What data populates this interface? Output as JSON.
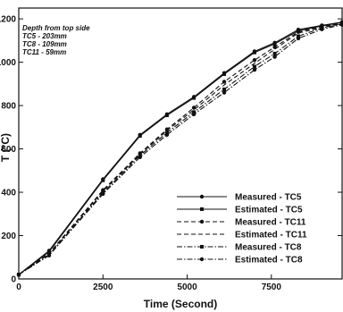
{
  "chart_data": {
    "type": "line",
    "xlabel": "Time (Second)",
    "ylabel": "T (°C)",
    "xlim": [
      0,
      9600
    ],
    "ylim": [
      0,
      1250
    ],
    "x_ticks": [
      0,
      2500,
      5000,
      7500
    ],
    "y_ticks": [
      0,
      200,
      400,
      600,
      800,
      1000,
      1200
    ],
    "grid": false,
    "annotation_lines": [
      "Depth from top side",
      "TC5 - 203mm",
      "TC8 - 109mm",
      "TC11 - 59mm"
    ],
    "legend_position": "bottom-right",
    "series": [
      {
        "name": "Measured - TC5",
        "dash": "solid",
        "marker": "circle",
        "x": [
          0,
          900,
          2500,
          3600,
          4400,
          5200,
          6100,
          7000,
          7600,
          8300,
          9000,
          9600
        ],
        "y": [
          20,
          130,
          460,
          665,
          760,
          840,
          950,
          1050,
          1090,
          1150,
          1170,
          1185
        ]
      },
      {
        "name": "Estimated - TC5",
        "dash": "solid",
        "marker": "square",
        "x": [
          0,
          900,
          2500,
          3600,
          4400,
          5200,
          6100,
          7000,
          7600,
          8300,
          9000,
          9600
        ],
        "y": [
          20,
          125,
          455,
          660,
          755,
          835,
          945,
          1045,
          1085,
          1145,
          1168,
          1183
        ]
      },
      {
        "name": "Measured - TC11",
        "dash": "dash",
        "marker": "circle",
        "x": [
          0,
          900,
          2500,
          3600,
          4400,
          5200,
          6100,
          7000,
          7600,
          8300,
          9000,
          9600
        ],
        "y": [
          20,
          118,
          410,
          580,
          690,
          790,
          910,
          1010,
          1070,
          1140,
          1165,
          1180
        ]
      },
      {
        "name": "Estimated - TC11",
        "dash": "dash",
        "marker": "none",
        "x": [
          0,
          900,
          2500,
          3600,
          4400,
          5200,
          6100,
          7000,
          7600,
          8300,
          9000,
          9600
        ],
        "y": [
          20,
          115,
          405,
          575,
          685,
          780,
          895,
          995,
          1060,
          1135,
          1160,
          1178
        ]
      },
      {
        "name": "Measured - TC8",
        "dash": "dashdot",
        "marker": "square",
        "x": [
          0,
          900,
          2500,
          3600,
          4400,
          5200,
          6100,
          7000,
          7600,
          8300,
          9000,
          9600
        ],
        "y": [
          20,
          112,
          398,
          570,
          675,
          770,
          875,
          980,
          1040,
          1120,
          1158,
          1176
        ]
      },
      {
        "name": "Estimated - TC8",
        "dash": "dashdot",
        "marker": "circle",
        "x": [
          0,
          900,
          2500,
          3600,
          4400,
          5200,
          6100,
          7000,
          7600,
          8300,
          9000,
          9600
        ],
        "y": [
          20,
          108,
          392,
          562,
          665,
          760,
          860,
          965,
          1025,
          1110,
          1152,
          1173
        ]
      }
    ]
  }
}
